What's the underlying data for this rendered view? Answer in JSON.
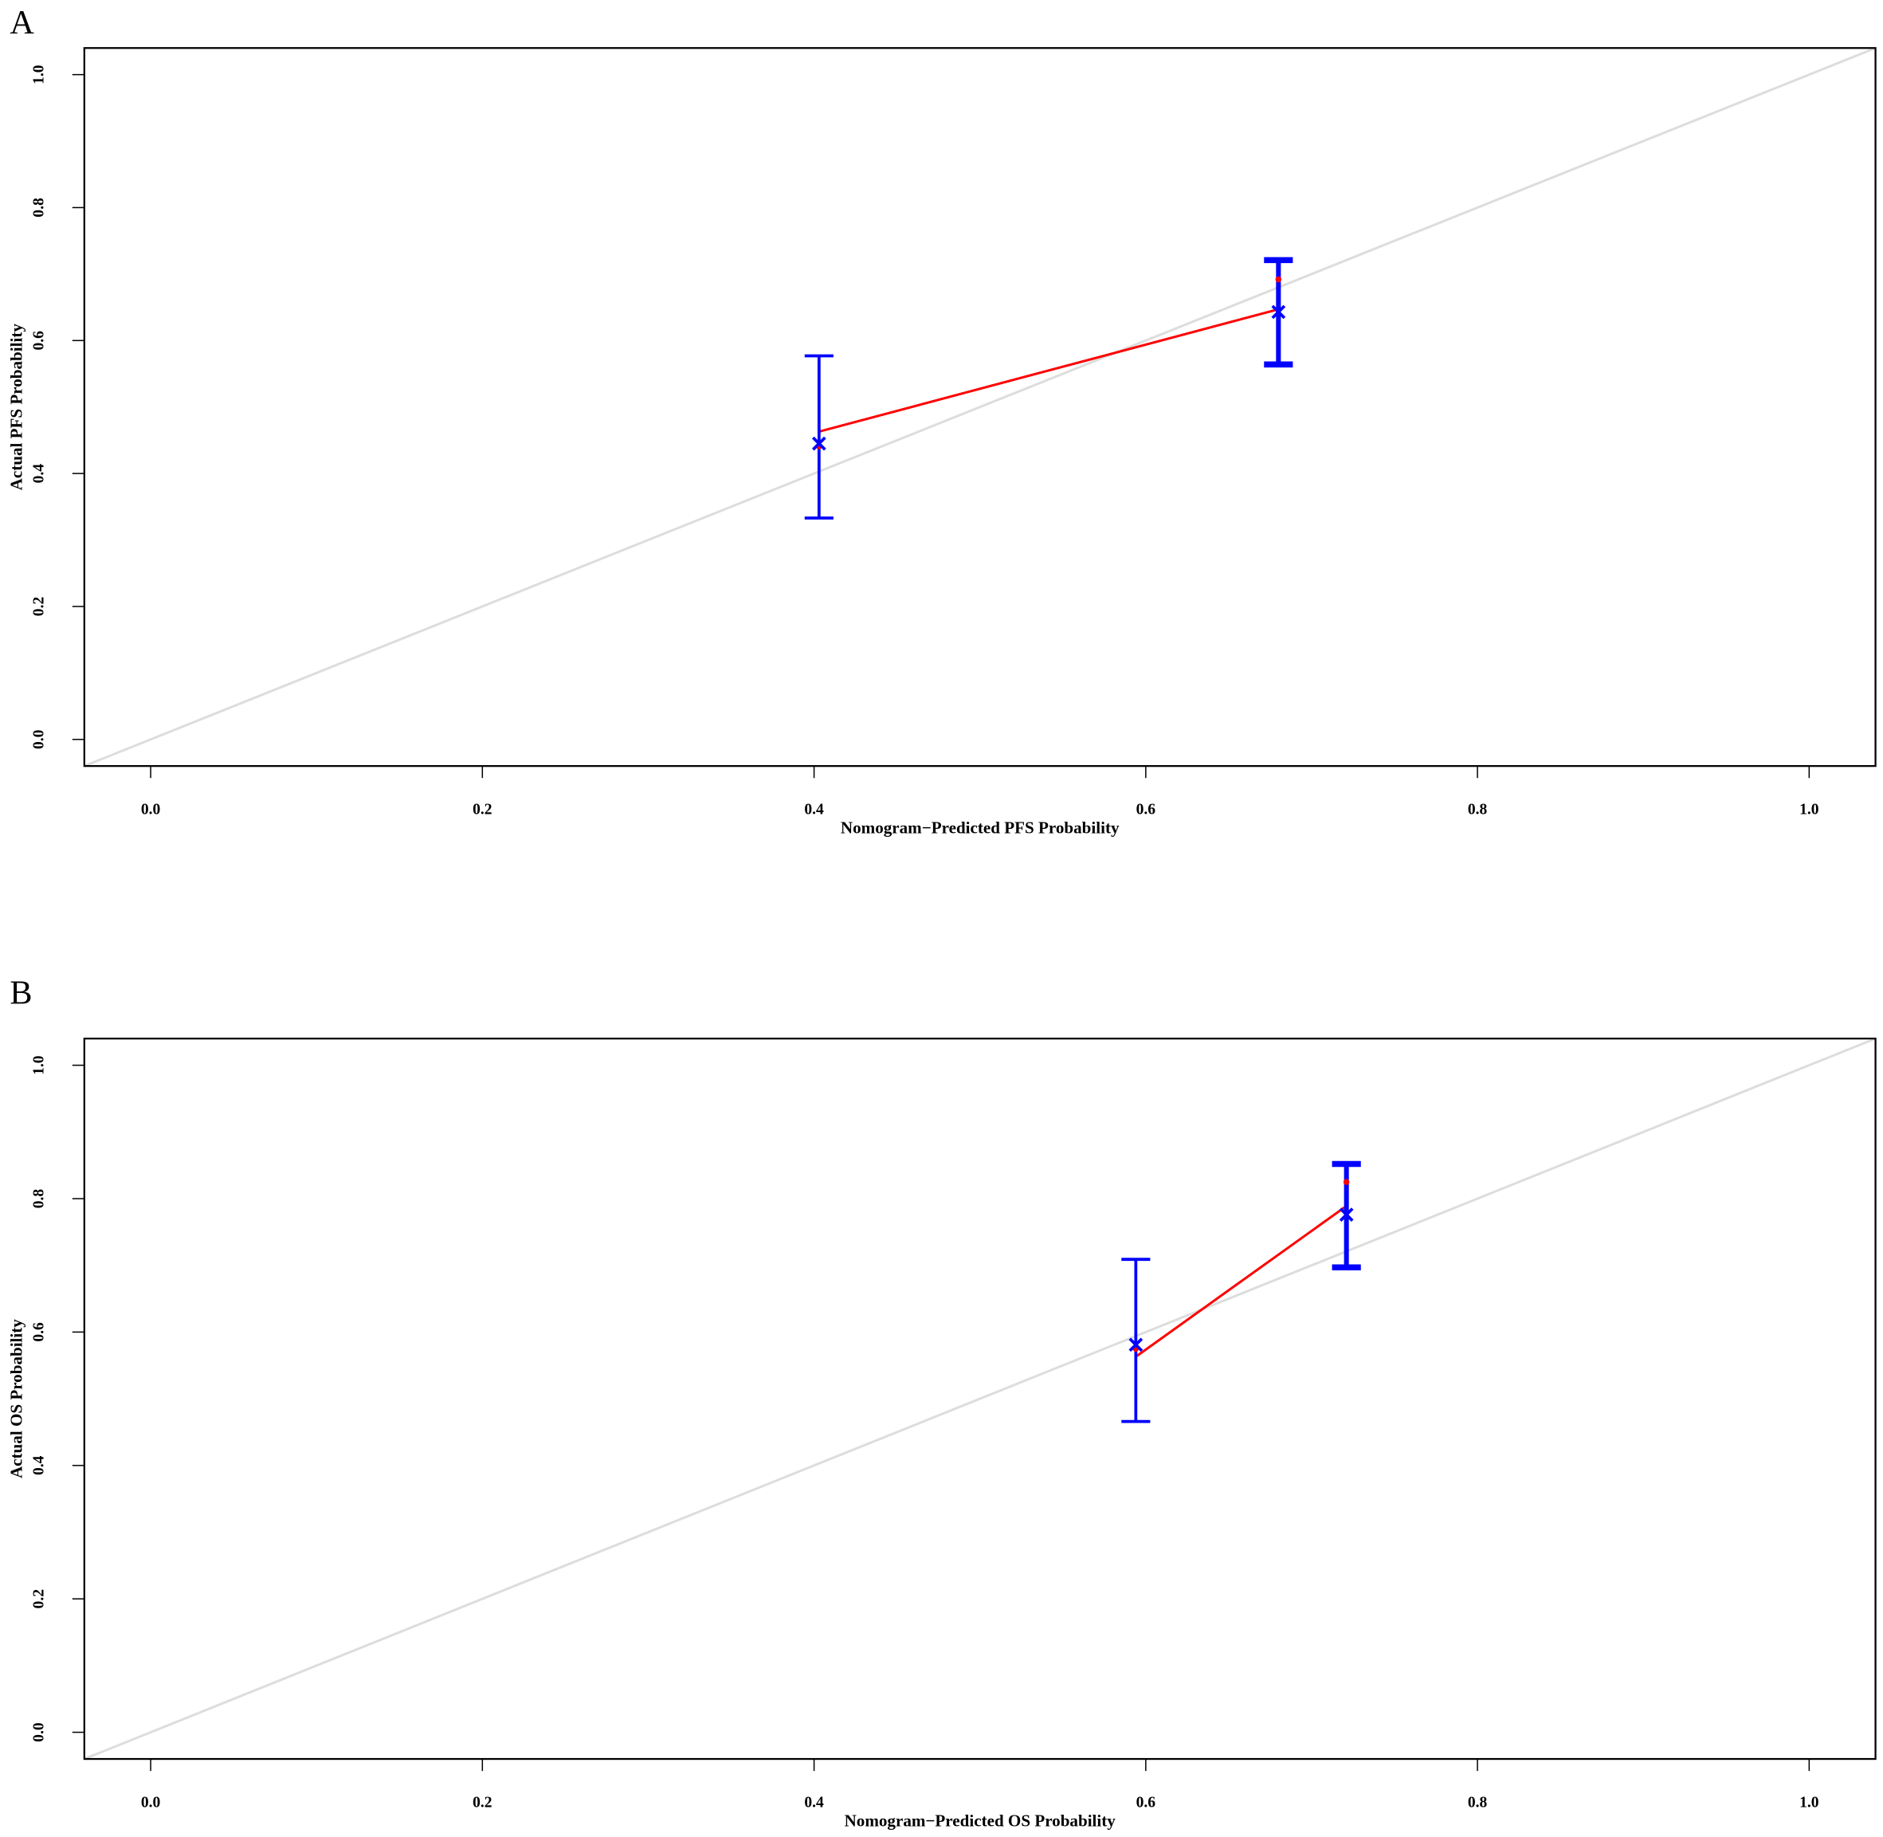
{
  "chart_data": [
    {
      "type": "calibration",
      "panel_label": "A",
      "xlabel": "Nomogram−Predicted PFS Probability",
      "ylabel": "Actual PFS Probability",
      "xlim": [
        -0.04,
        1.04
      ],
      "ylim": [
        -0.04,
        1.04
      ],
      "xticks": [
        {
          "value": 0,
          "label": "0.0"
        },
        {
          "value": 0.2,
          "label": "0.2"
        },
        {
          "value": 0.4,
          "label": "0.4"
        },
        {
          "value": 0.6,
          "label": "0.6"
        },
        {
          "value": 0.8,
          "label": "0.8"
        },
        {
          "value": 1,
          "label": "1.0"
        }
      ],
      "yticks": [
        {
          "value": 0,
          "label": "0.0"
        },
        {
          "value": 0.2,
          "label": "0.2"
        },
        {
          "value": 0.4,
          "label": "0.4"
        },
        {
          "value": 0.6,
          "label": "0.6"
        },
        {
          "value": 0.8,
          "label": "0.8"
        },
        {
          "value": 1,
          "label": "1.0"
        }
      ],
      "x": [
        0.403,
        0.68
      ],
      "observed": [
        0.445,
        0.643
      ],
      "lower": [
        0.333,
        0.564
      ],
      "upper": [
        0.577,
        0.721
      ],
      "corrected": [
        0.463,
        0.647
      ],
      "apparent": [
        0.441,
        0.692
      ],
      "ci_color": "#0000ff",
      "line_color": "#ff0000",
      "diagonal_color": "#dddddd"
    },
    {
      "type": "calibration",
      "panel_label": "B",
      "xlabel": "Nomogram−Predicted OS Probability",
      "ylabel": "Actual OS Probability",
      "xlim": [
        -0.04,
        1.04
      ],
      "ylim": [
        -0.04,
        1.04
      ],
      "xticks": [
        {
          "value": 0,
          "label": "0.0"
        },
        {
          "value": 0.2,
          "label": "0.2"
        },
        {
          "value": 0.4,
          "label": "0.4"
        },
        {
          "value": 0.6,
          "label": "0.6"
        },
        {
          "value": 0.8,
          "label": "0.8"
        },
        {
          "value": 1,
          "label": "1.0"
        }
      ],
      "yticks": [
        {
          "value": 0,
          "label": "0.0"
        },
        {
          "value": 0.2,
          "label": "0.2"
        },
        {
          "value": 0.4,
          "label": "0.4"
        },
        {
          "value": 0.6,
          "label": "0.6"
        },
        {
          "value": 0.8,
          "label": "0.8"
        },
        {
          "value": 1,
          "label": "1.0"
        }
      ],
      "x": [
        0.594,
        0.721
      ],
      "observed": [
        0.581,
        0.776
      ],
      "lower": [
        0.466,
        0.697
      ],
      "upper": [
        0.709,
        0.852
      ],
      "corrected": [
        0.563,
        0.789
      ],
      "apparent": [
        0.575,
        0.825
      ],
      "ci_color": "#0000ff",
      "line_color": "#ff0000",
      "diagonal_color": "#dddddd"
    }
  ]
}
